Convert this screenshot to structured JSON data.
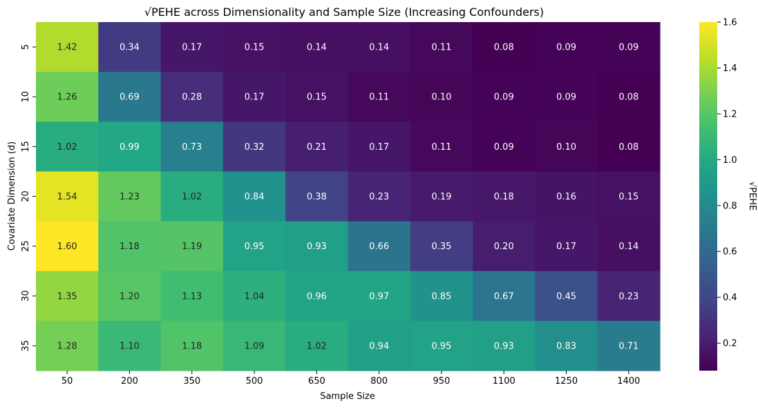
{
  "chart_data": {
    "type": "heatmap",
    "title": "√PEHE across Dimensionality and Sample Size (Increasing Confounders)",
    "xlabel": "Sample Size",
    "ylabel": "Covariate Dimension (d)",
    "x_categories": [
      "50",
      "200",
      "350",
      "500",
      "650",
      "800",
      "950",
      "1100",
      "1250",
      "1400"
    ],
    "y_categories": [
      "5",
      "10",
      "15",
      "20",
      "25",
      "30",
      "35"
    ],
    "values": [
      [
        1.42,
        0.34,
        0.17,
        0.15,
        0.14,
        0.14,
        0.11,
        0.08,
        0.09,
        0.09
      ],
      [
        1.26,
        0.69,
        0.28,
        0.17,
        0.15,
        0.11,
        0.1,
        0.09,
        0.09,
        0.08
      ],
      [
        1.02,
        0.99,
        0.73,
        0.32,
        0.21,
        0.17,
        0.11,
        0.09,
        0.1,
        0.08
      ],
      [
        1.54,
        1.23,
        1.02,
        0.84,
        0.38,
        0.23,
        0.19,
        0.18,
        0.16,
        0.15
      ],
      [
        1.6,
        1.18,
        1.19,
        0.95,
        0.93,
        0.66,
        0.35,
        0.2,
        0.17,
        0.14
      ],
      [
        1.35,
        1.2,
        1.13,
        1.04,
        0.96,
        0.97,
        0.85,
        0.67,
        0.45,
        0.23
      ],
      [
        1.28,
        1.1,
        1.18,
        1.09,
        1.02,
        0.94,
        0.95,
        0.93,
        0.83,
        0.71
      ]
    ],
    "colorbar": {
      "label": "√PEHE",
      "colormap": "viridis",
      "vmin": 0.08,
      "vmax": 1.6,
      "ticks": [
        "0.2",
        "0.4",
        "0.6",
        "0.8",
        "1.0",
        "1.2",
        "1.4",
        "1.6"
      ]
    },
    "annotation_colors": {
      "dark": "#262626",
      "light": "#ffffff"
    },
    "grid": false,
    "legend": "colorbar-right"
  }
}
